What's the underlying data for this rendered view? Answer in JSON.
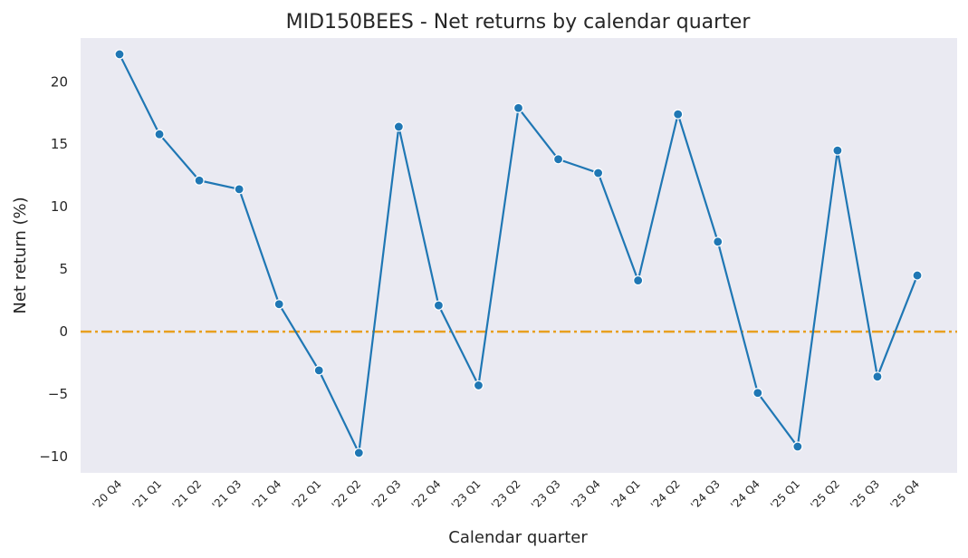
{
  "chart_data": {
    "type": "line",
    "title": "MID150BEES - Net returns by calendar quarter",
    "xlabel": "Calendar quarter",
    "ylabel": "Net return (%)",
    "categories": [
      "'20 Q4",
      "'21 Q1",
      "'21 Q2",
      "'21 Q3",
      "'21 Q4",
      "'22 Q1",
      "'22 Q2",
      "'22 Q3",
      "'22 Q4",
      "'23 Q1",
      "'23 Q2",
      "'23 Q3",
      "'23 Q4",
      "'24 Q1",
      "'24 Q2",
      "'24 Q3",
      "'24 Q4",
      "'25 Q1",
      "'25 Q2",
      "'25 Q3",
      "'25 Q4"
    ],
    "series": [
      {
        "values": [
          22.2,
          15.8,
          12.1,
          11.4,
          2.2,
          -3.1,
          -9.7,
          16.4,
          2.1,
          -4.3,
          17.9,
          13.8,
          12.7,
          4.1,
          17.4,
          7.2,
          -4.9,
          -9.2,
          14.5,
          -3.6,
          4.5
        ],
        "color": "#1f77b4"
      }
    ],
    "reference_line": {
      "y": 0,
      "color": "#e8a020",
      "style": "dash-dot"
    },
    "yticks": [
      -10,
      -5,
      0,
      5,
      10,
      15,
      20
    ],
    "ylim": [
      -11.3,
      23.5
    ],
    "grid": false,
    "background": "#eaeaf2"
  }
}
